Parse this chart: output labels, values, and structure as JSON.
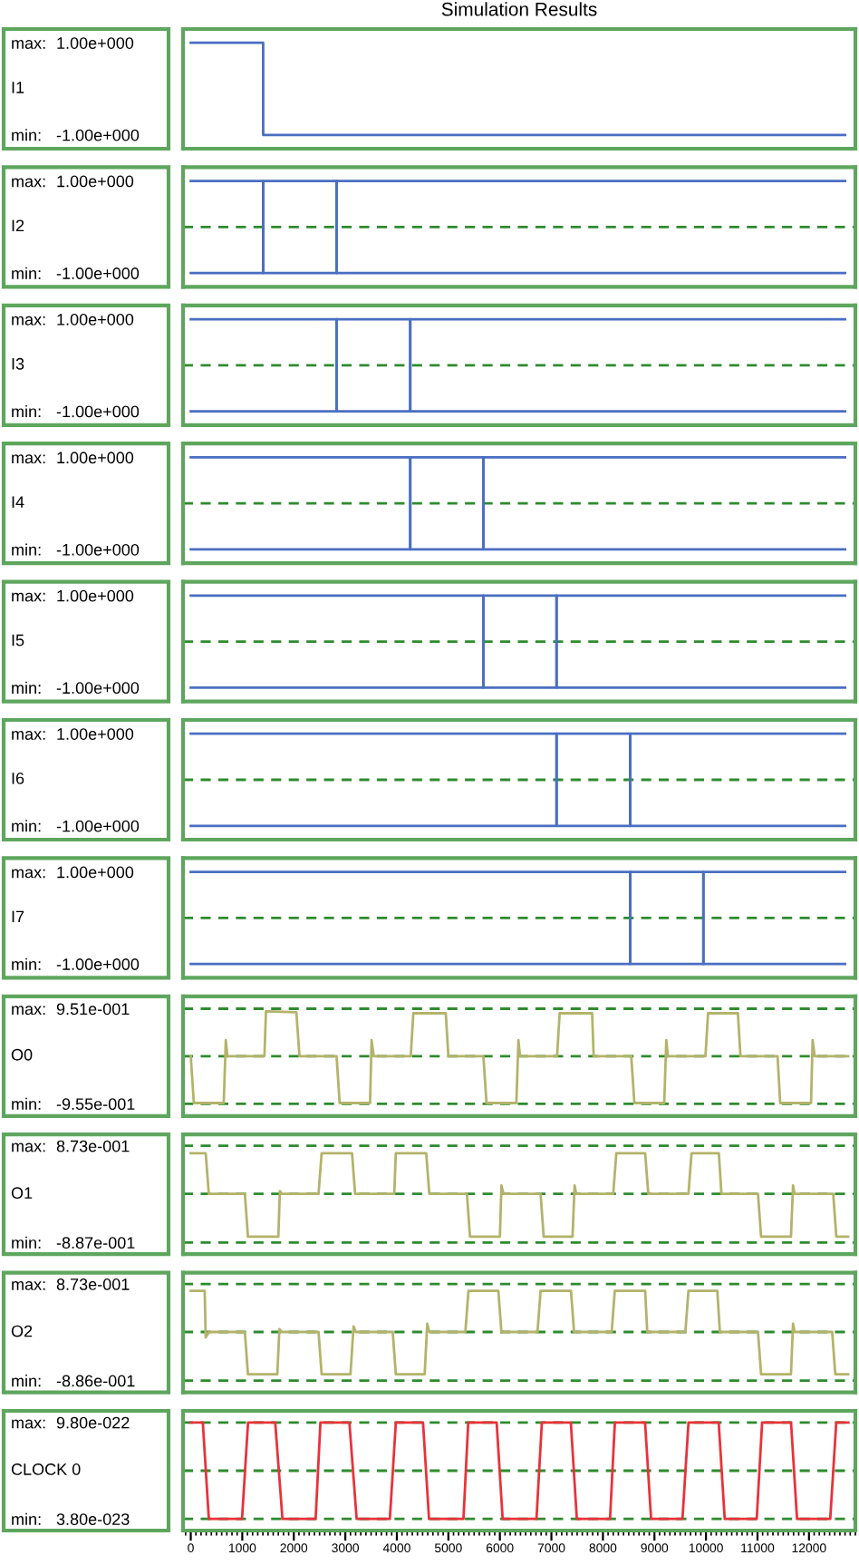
{
  "chart_data": [
    {
      "type": "line",
      "title": "Simulation Results",
      "ylabel": "I1",
      "annotations": [
        "max:",
        "min:"
      ],
      "xlim": [
        -150,
        12900
      ],
      "ylim": [
        -1.3,
        1.3
      ],
      "yticks": [
        {
          "value": 1,
          "label": "1.00e+000"
        },
        {
          "value": -1,
          "label": "-1.00e+000"
        }
      ],
      "tick_labels": "y",
      "grid": false,
      "legend": false,
      "series": [
        {
          "color": "#4a6fc1",
          "x": [
            0,
            1405,
            1405,
            12700
          ],
          "values": [
            1,
            1,
            -1,
            -1
          ]
        }
      ]
    },
    {
      "type": "line",
      "ylabel": "I2",
      "annotations": [
        "max:",
        "min:"
      ],
      "xlim": [
        -150,
        12900
      ],
      "ylim": [
        -1.3,
        1.3
      ],
      "yticks": [
        {
          "value": 1,
          "label": "1.00e+000"
        },
        {
          "value": -1,
          "label": "-1.00e+000"
        }
      ],
      "tick_labels": "y",
      "grid": false,
      "legend": false,
      "ref_lines": [
        {
          "axis": "y",
          "value": 0,
          "color": "#2e8b2e",
          "line_style": "dashed"
        }
      ],
      "series": [
        {
          "color": "#4a6fc1",
          "x": [
            0,
            1405,
            1405,
            2830,
            2830,
            12700
          ],
          "values": [
            -1,
            -1,
            1,
            1,
            -1,
            -1
          ]
        },
        {
          "color": "#4a6fc1",
          "x": [
            0,
            1405,
            1405,
            2830,
            2830,
            12700
          ],
          "values": [
            1,
            1,
            -1,
            -1,
            1,
            1
          ]
        }
      ]
    },
    {
      "type": "line",
      "ylabel": "I3",
      "annotations": [
        "max:",
        "min:"
      ],
      "xlim": [
        -150,
        12900
      ],
      "ylim": [
        -1.3,
        1.3
      ],
      "yticks": [
        {
          "value": 1,
          "label": "1.00e+000"
        },
        {
          "value": -1,
          "label": "-1.00e+000"
        }
      ],
      "tick_labels": "y",
      "grid": false,
      "legend": false,
      "ref_lines": [
        {
          "axis": "y",
          "value": 0,
          "color": "#2e8b2e",
          "line_style": "dashed"
        }
      ],
      "series": [
        {
          "color": "#4a6fc1",
          "x": [
            0,
            2830,
            2830,
            4260,
            4260,
            12700
          ],
          "values": [
            -1,
            -1,
            1,
            1,
            -1,
            -1
          ]
        },
        {
          "color": "#4a6fc1",
          "x": [
            0,
            2830,
            2830,
            4260,
            4260,
            12700
          ],
          "values": [
            1,
            1,
            -1,
            -1,
            1,
            1
          ]
        }
      ]
    },
    {
      "type": "line",
      "ylabel": "I4",
      "annotations": [
        "max:",
        "min:"
      ],
      "xlim": [
        -150,
        12900
      ],
      "ylim": [
        -1.3,
        1.3
      ],
      "yticks": [
        {
          "value": 1,
          "label": "1.00e+000"
        },
        {
          "value": -1,
          "label": "-1.00e+000"
        }
      ],
      "tick_labels": "y",
      "grid": false,
      "legend": false,
      "ref_lines": [
        {
          "axis": "y",
          "value": 0,
          "color": "#2e8b2e",
          "line_style": "dashed"
        }
      ],
      "series": [
        {
          "color": "#4a6fc1",
          "x": [
            0,
            4260,
            4260,
            5680,
            5680,
            12700
          ],
          "values": [
            -1,
            -1,
            1,
            1,
            -1,
            -1
          ]
        },
        {
          "color": "#4a6fc1",
          "x": [
            0,
            4260,
            4260,
            5680,
            5680,
            12700
          ],
          "values": [
            1,
            1,
            -1,
            -1,
            1,
            1
          ]
        }
      ]
    },
    {
      "type": "line",
      "ylabel": "I5",
      "annotations": [
        "max:",
        "min:"
      ],
      "xlim": [
        -150,
        12900
      ],
      "ylim": [
        -1.3,
        1.3
      ],
      "yticks": [
        {
          "value": 1,
          "label": "1.00e+000"
        },
        {
          "value": -1,
          "label": "-1.00e+000"
        }
      ],
      "tick_labels": "y",
      "grid": false,
      "legend": false,
      "ref_lines": [
        {
          "axis": "y",
          "value": 0,
          "color": "#2e8b2e",
          "line_style": "dashed"
        }
      ],
      "series": [
        {
          "color": "#4a6fc1",
          "x": [
            0,
            5680,
            5680,
            7100,
            7100,
            12700
          ],
          "values": [
            -1,
            -1,
            1,
            1,
            -1,
            -1
          ]
        },
        {
          "color": "#4a6fc1",
          "x": [
            0,
            5680,
            5680,
            7100,
            7100,
            12700
          ],
          "values": [
            1,
            1,
            -1,
            -1,
            1,
            1
          ]
        }
      ]
    },
    {
      "type": "line",
      "ylabel": "I6",
      "annotations": [
        "max:",
        "min:"
      ],
      "xlim": [
        -150,
        12900
      ],
      "ylim": [
        -1.3,
        1.3
      ],
      "yticks": [
        {
          "value": 1,
          "label": "1.00e+000"
        },
        {
          "value": -1,
          "label": "-1.00e+000"
        }
      ],
      "tick_labels": "y",
      "grid": false,
      "legend": false,
      "ref_lines": [
        {
          "axis": "y",
          "value": 0,
          "color": "#2e8b2e",
          "line_style": "dashed"
        }
      ],
      "series": [
        {
          "color": "#4a6fc1",
          "x": [
            0,
            7100,
            7100,
            8530,
            8530,
            12700
          ],
          "values": [
            -1,
            -1,
            1,
            1,
            -1,
            -1
          ]
        },
        {
          "color": "#4a6fc1",
          "x": [
            0,
            7100,
            7100,
            8530,
            8530,
            12700
          ],
          "values": [
            1,
            1,
            -1,
            -1,
            1,
            1
          ]
        }
      ]
    },
    {
      "type": "line",
      "ylabel": "I7",
      "annotations": [
        "max:",
        "min:"
      ],
      "xlim": [
        -150,
        12900
      ],
      "ylim": [
        -1.3,
        1.3
      ],
      "yticks": [
        {
          "value": 1,
          "label": "1.00e+000"
        },
        {
          "value": -1,
          "label": "-1.00e+000"
        }
      ],
      "tick_labels": "y",
      "grid": false,
      "legend": false,
      "ref_lines": [
        {
          "axis": "y",
          "value": 0,
          "color": "#2e8b2e",
          "line_style": "dashed"
        }
      ],
      "series": [
        {
          "color": "#4a6fc1",
          "x": [
            0,
            8530,
            8530,
            9950,
            9950,
            12700
          ],
          "values": [
            -1,
            -1,
            1,
            1,
            -1,
            -1
          ]
        },
        {
          "color": "#4a6fc1",
          "x": [
            0,
            8530,
            8530,
            9950,
            9950,
            12700
          ],
          "values": [
            1,
            1,
            -1,
            -1,
            1,
            1
          ]
        }
      ]
    },
    {
      "type": "line",
      "ylabel": "O0",
      "annotations": [
        "max:",
        "min:"
      ],
      "xlim": [
        -150,
        12900
      ],
      "ylim": [
        -1.2,
        1.2
      ],
      "yticks": [
        {
          "value": 0.951,
          "label": "9.51e-001"
        },
        {
          "value": -0.955,
          "label": "-9.55e-001"
        }
      ],
      "tick_labels": "y",
      "grid": false,
      "legend": false,
      "ref_lines": [
        {
          "axis": "y",
          "value": 0.951,
          "color": "#2e8b2e",
          "line_style": "dashed"
        },
        {
          "axis": "y",
          "value": 0,
          "color": "#2e8b2e",
          "line_style": "dashed"
        },
        {
          "axis": "y",
          "value": -0.955,
          "color": "#2e8b2e",
          "line_style": "dashed"
        }
      ],
      "series": [
        {
          "color": "#b3b36b",
          "x": [
            0,
            60,
            640,
            680,
            710,
            1430,
            1460,
            2050,
            2110,
            2830,
            2890,
            3480,
            3510,
            3550,
            4270,
            4320,
            4950,
            5000,
            5680,
            5740,
            6320,
            6360,
            6390,
            7110,
            7160,
            7790,
            7820,
            8550,
            8610,
            9190,
            9230,
            9260,
            9990,
            10040,
            10620,
            10670,
            11390,
            11440,
            12040,
            12070,
            12110,
            12760
          ],
          "values": [
            0,
            -0.94,
            -0.94,
            0.32,
            0,
            0,
            0.9,
            0.88,
            0,
            0,
            -0.94,
            -0.94,
            0.32,
            0,
            0,
            0.86,
            0.86,
            0,
            0,
            -0.94,
            -0.94,
            0.32,
            0,
            0,
            0.86,
            0.86,
            0,
            0,
            -0.94,
            -0.94,
            0.32,
            0,
            0,
            0.86,
            0.86,
            0,
            0,
            -0.94,
            -0.94,
            0.32,
            0,
            0
          ]
        }
      ]
    },
    {
      "type": "line",
      "ylabel": "O1",
      "annotations": [
        "max:",
        "min:"
      ],
      "xlim": [
        -150,
        12900
      ],
      "ylim": [
        -1.1,
        1.08
      ],
      "yticks": [
        {
          "value": 0.873,
          "label": "8.73e-001"
        },
        {
          "value": -0.887,
          "label": "-8.87e-001"
        }
      ],
      "tick_labels": "y",
      "grid": false,
      "legend": false,
      "ref_lines": [
        {
          "axis": "y",
          "value": 0.873,
          "color": "#2e8b2e",
          "line_style": "dashed"
        },
        {
          "axis": "y",
          "value": 0,
          "color": "#2e8b2e",
          "line_style": "dashed"
        },
        {
          "axis": "y",
          "value": -0.887,
          "color": "#2e8b2e",
          "line_style": "dashed"
        }
      ],
      "series": [
        {
          "color": "#b3b36b",
          "x": [
            0,
            290,
            350,
            1050,
            1110,
            1700,
            1730,
            1770,
            2480,
            2540,
            3130,
            3190,
            3950,
            3980,
            4570,
            4630,
            5360,
            5420,
            6000,
            6030,
            6070,
            6790,
            6850,
            7410,
            7450,
            7480,
            8200,
            8260,
            8820,
            8880,
            9660,
            9720,
            10250,
            10300,
            11010,
            11070,
            11650,
            11690,
            11720,
            12470,
            12530,
            12760
          ],
          "values": [
            0.74,
            0.74,
            0,
            0,
            -0.78,
            -0.78,
            0.05,
            0,
            0,
            0.74,
            0.74,
            0,
            0,
            0.74,
            0.74,
            0,
            0,
            -0.78,
            -0.78,
            0.15,
            0,
            0,
            -0.78,
            -0.78,
            0.15,
            0,
            0,
            0.74,
            0.74,
            0,
            0,
            0.74,
            0.74,
            0,
            0,
            -0.78,
            -0.78,
            0.15,
            0,
            0,
            -0.78,
            -0.78
          ]
        }
      ]
    },
    {
      "type": "line",
      "ylabel": "O2",
      "annotations": [
        "max:",
        "min:"
      ],
      "xlim": [
        -150,
        12900
      ],
      "ylim": [
        -1.1,
        1.08
      ],
      "yticks": [
        {
          "value": 0.873,
          "label": "8.73e-001"
        },
        {
          "value": -0.886,
          "label": "-8.86e-001"
        }
      ],
      "tick_labels": "y",
      "grid": false,
      "legend": false,
      "ref_lines": [
        {
          "axis": "y",
          "value": 0.873,
          "color": "#2e8b2e",
          "line_style": "dashed"
        },
        {
          "axis": "y",
          "value": 0,
          "color": "#2e8b2e",
          "line_style": "dashed"
        },
        {
          "axis": "y",
          "value": -0.886,
          "color": "#2e8b2e",
          "line_style": "dashed"
        }
      ],
      "series": [
        {
          "color": "#b3b36b",
          "x": [
            0,
            270,
            290,
            350,
            1050,
            1110,
            1680,
            1720,
            1770,
            2480,
            2540,
            3100,
            3160,
            3200,
            3920,
            3980,
            4540,
            4590,
            4630,
            5330,
            5390,
            5970,
            6030,
            6730,
            6790,
            7380,
            7440,
            8170,
            8230,
            8820,
            8860,
            9600,
            9660,
            10220,
            10270,
            11010,
            11070,
            11650,
            11690,
            11720,
            12450,
            12510,
            12760
          ],
          "values": [
            0.75,
            0.75,
            -0.1,
            0,
            0,
            -0.77,
            -0.77,
            0.05,
            0,
            0,
            -0.77,
            -0.77,
            0.1,
            0,
            0,
            -0.77,
            -0.77,
            0.15,
            0,
            0,
            0.75,
            0.75,
            0,
            0,
            0.75,
            0.75,
            0,
            0,
            0.75,
            0.75,
            0,
            0,
            0.75,
            0.75,
            0,
            0,
            -0.77,
            -0.77,
            0.15,
            0,
            0,
            -0.77,
            -0.77
          ]
        }
      ]
    },
    {
      "type": "line",
      "ylabel": "CLOCK 0",
      "annotations": [
        "max:",
        "min:"
      ],
      "xlim": [
        -150,
        12900
      ],
      "ylim": [
        -7.5e-23,
        1.093e-21
      ],
      "yticks": [
        {
          "value": 9.8e-22,
          "label": "9.80e-022"
        },
        {
          "value": 3.8e-23,
          "label": "3.80e-023"
        }
      ],
      "xticks": [
        0,
        1000,
        2000,
        3000,
        4000,
        5000,
        6000,
        7000,
        8000,
        9000,
        10000,
        11000,
        12000
      ],
      "grid": false,
      "legend": false,
      "ref_lines": [
        {
          "axis": "y",
          "value": 9.8e-22,
          "color": "#2e8b2e",
          "line_style": "dashed"
        },
        {
          "axis": "y",
          "value": 5.09e-22,
          "color": "#2e8b2e",
          "line_style": "dashed"
        },
        {
          "axis": "y",
          "value": 3.8e-23,
          "color": "#2e8b2e",
          "line_style": "dashed"
        }
      ],
      "series": [
        {
          "color": "#e8323a",
          "x": [
            0,
            234,
            351,
            995,
            1112,
            1639,
            1780,
            2424,
            2517,
            3079,
            3220,
            3864,
            3981,
            4508,
            4625,
            5293,
            5386,
            5937,
            6054,
            6710,
            6815,
            7377,
            7494,
            8138,
            8232,
            8818,
            8935,
            9544,
            9661,
            10247,
            10364,
            10985,
            11090,
            11651,
            11768,
            12412,
            12529,
            12764
          ],
          "values": [
            9.8e-22,
            9.8e-22,
            3.8e-23,
            3.8e-23,
            9.8e-22,
            9.8e-22,
            3.8e-23,
            3.8e-23,
            9.8e-22,
            9.8e-22,
            3.8e-23,
            3.8e-23,
            9.8e-22,
            9.8e-22,
            3.8e-23,
            3.8e-23,
            9.8e-22,
            9.8e-22,
            3.8e-23,
            3.8e-23,
            9.8e-22,
            9.8e-22,
            3.8e-23,
            3.8e-23,
            9.8e-22,
            9.8e-22,
            3.8e-23,
            3.8e-23,
            9.8e-22,
            9.8e-22,
            3.8e-23,
            3.8e-23,
            9.8e-22,
            9.8e-22,
            3.8e-23,
            3.8e-23,
            9.8e-22,
            9.8e-22
          ]
        }
      ]
    }
  ]
}
